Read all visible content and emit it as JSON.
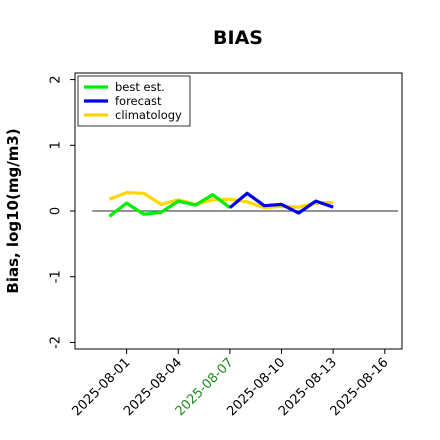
{
  "chart_data": {
    "type": "line",
    "title": "BIAS",
    "xlabel": "",
    "ylabel": "Bias, log10(mg/m3)",
    "ylim": [
      -2.1,
      2.1
    ],
    "y_ticks": [
      -2,
      -1,
      0,
      1,
      2
    ],
    "y_tick_labels": [
      "-2",
      "-1",
      "0",
      "1",
      "2"
    ],
    "x_range": [
      "2025-07-29",
      "2025-08-17"
    ],
    "x_ticks": [
      {
        "date": "2025-08-01",
        "label": "2025-08-01",
        "color": "#000000"
      },
      {
        "date": "2025-08-04",
        "label": "2025-08-04",
        "color": "#000000"
      },
      {
        "date": "2025-08-07",
        "label": "2025-08-07",
        "color": "#228B22"
      },
      {
        "date": "2025-08-10",
        "label": "2025-08-10",
        "color": "#000000"
      },
      {
        "date": "2025-08-13",
        "label": "2025-08-13",
        "color": "#000000"
      },
      {
        "date": "2025-08-16",
        "label": "2025-08-16",
        "color": "#000000"
      }
    ],
    "reference_line": 0,
    "grid": false,
    "legend_position": "top-left",
    "series": [
      {
        "name": "best est.",
        "color": "#00ee00",
        "x": [
          "2025-07-31",
          "2025-08-01",
          "2025-08-02",
          "2025-08-03",
          "2025-08-04",
          "2025-08-05",
          "2025-08-06",
          "2025-08-07"
        ],
        "values": [
          -0.08,
          0.12,
          -0.05,
          -0.02,
          0.15,
          0.09,
          0.25,
          0.05
        ]
      },
      {
        "name": "forecast",
        "color": "#0000ee",
        "x": [
          "2025-08-07",
          "2025-08-08",
          "2025-08-09",
          "2025-08-10",
          "2025-08-11",
          "2025-08-12",
          "2025-08-13"
        ],
        "values": [
          0.05,
          0.27,
          0.08,
          0.1,
          -0.03,
          0.15,
          0.06
        ]
      },
      {
        "name": "climatology",
        "color": "#ffd700",
        "x": [
          "2025-07-31",
          "2025-08-01",
          "2025-08-02",
          "2025-08-03",
          "2025-08-04",
          "2025-08-05",
          "2025-08-06",
          "2025-08-07",
          "2025-08-08",
          "2025-08-09",
          "2025-08-10",
          "2025-08-11",
          "2025-08-12",
          "2025-08-13"
        ],
        "values": [
          0.18,
          0.28,
          0.27,
          0.1,
          0.17,
          0.1,
          0.17,
          0.18,
          0.14,
          0.05,
          0.07,
          0.06,
          0.12,
          0.13
        ]
      }
    ]
  }
}
